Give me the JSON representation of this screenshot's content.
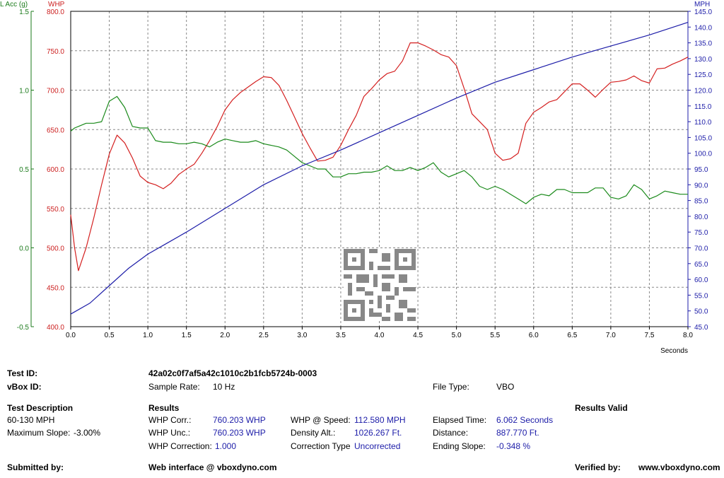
{
  "chart_data": {
    "type": "line",
    "xlabel": "Seconds",
    "xlim": [
      0,
      8
    ],
    "x_ticks": [
      "0.0",
      "0.5",
      "1.0",
      "1.5",
      "2.0",
      "2.5",
      "3.0",
      "3.5",
      "4.0",
      "4.5",
      "5.0",
      "5.5",
      "6.0",
      "6.5",
      "7.0",
      "7.5",
      "8.0"
    ],
    "grid": true,
    "axes": {
      "lacc": {
        "label": "L Acc (g)",
        "range": [
          -0.5,
          1.5
        ],
        "ticks": [
          "1.5",
          "1.0",
          "0.5",
          "0.0",
          "-0.5"
        ],
        "color": "#1a7a1a",
        "side": "left-outer"
      },
      "whp": {
        "label": "WHP",
        "range": [
          400,
          800
        ],
        "ticks": [
          "800.0",
          "750.0",
          "700.0",
          "650.0",
          "600.0",
          "550.0",
          "500.0",
          "450.0",
          "400.0"
        ],
        "color": "#cc1f1f",
        "side": "left-inner"
      },
      "mph": {
        "label": "MPH",
        "range": [
          45,
          145
        ],
        "ticks": [
          "145.0",
          "140.0",
          "135.0",
          "130.0",
          "125.0",
          "120.0",
          "115.0",
          "110.0",
          "105.0",
          "100.0",
          "95.0",
          "90.0",
          "85.0",
          "80.0",
          "75.0",
          "70.0",
          "65.0",
          "60.0",
          "55.0",
          "50.0",
          "45.0"
        ],
        "color": "#1c1ca8",
        "side": "right"
      }
    },
    "series": [
      {
        "axis": "whp",
        "color": "#d42020",
        "x": [
          0,
          0.05,
          0.1,
          0.2,
          0.3,
          0.4,
          0.5,
          0.6,
          0.7,
          0.8,
          0.9,
          1.0,
          1.1,
          1.2,
          1.3,
          1.4,
          1.5,
          1.6,
          1.7,
          1.8,
          1.9,
          2.0,
          2.1,
          2.2,
          2.3,
          2.4,
          2.5,
          2.6,
          2.7,
          2.8,
          2.9,
          3.0,
          3.1,
          3.2,
          3.3,
          3.4,
          3.5,
          3.6,
          3.7,
          3.8,
          3.9,
          4.0,
          4.1,
          4.2,
          4.3,
          4.4,
          4.5,
          4.6,
          4.7,
          4.8,
          4.9,
          5.0,
          5.1,
          5.2,
          5.3,
          5.4,
          5.5,
          5.6,
          5.7,
          5.8,
          5.9,
          6.0,
          6.1,
          6.2,
          6.3,
          6.4,
          6.5,
          6.6,
          6.7,
          6.8,
          6.9,
          7.0,
          7.1,
          7.2,
          7.3,
          7.4,
          7.5,
          7.6,
          7.7,
          7.8,
          7.9,
          8.0
        ],
        "y": [
          542,
          500,
          471,
          500,
          538,
          580,
          619,
          643,
          633,
          614,
          591,
          583,
          580,
          575,
          582,
          593,
          600,
          606,
          620,
          636,
          654,
          675,
          688,
          697,
          704,
          711,
          717,
          716,
          706,
          687,
          666,
          645,
          627,
          610,
          611,
          615,
          630,
          650,
          668,
          692,
          702,
          713,
          721,
          724,
          737,
          760,
          760,
          756,
          751,
          745,
          742,
          731,
          702,
          670,
          660,
          650,
          620,
          611,
          613,
          620,
          658,
          672,
          678,
          685,
          688,
          698,
          708,
          708,
          700,
          691,
          701,
          710,
          711,
          713,
          718,
          712,
          709,
          727,
          728,
          733,
          737,
          742
        ]
      },
      {
        "axis": "lacc",
        "color": "#1a8a1a",
        "x": [
          0,
          0.05,
          0.1,
          0.2,
          0.3,
          0.4,
          0.5,
          0.6,
          0.7,
          0.8,
          0.9,
          1.0,
          1.1,
          1.2,
          1.3,
          1.4,
          1.5,
          1.6,
          1.7,
          1.8,
          1.9,
          2.0,
          2.1,
          2.2,
          2.3,
          2.4,
          2.5,
          2.6,
          2.7,
          2.8,
          2.9,
          3.0,
          3.1,
          3.2,
          3.3,
          3.4,
          3.5,
          3.6,
          3.7,
          3.8,
          3.9,
          4.0,
          4.1,
          4.2,
          4.3,
          4.4,
          4.5,
          4.6,
          4.7,
          4.8,
          4.9,
          5.0,
          5.1,
          5.2,
          5.3,
          5.4,
          5.5,
          5.6,
          5.7,
          5.8,
          5.9,
          6.0,
          6.1,
          6.2,
          6.3,
          6.4,
          6.5,
          6.6,
          6.7,
          6.8,
          6.9,
          7.0,
          7.1,
          7.2,
          7.3,
          7.4,
          7.5,
          7.6,
          7.7,
          7.8,
          7.9,
          8.0
        ],
        "y": [
          0.74,
          0.76,
          0.77,
          0.79,
          0.79,
          0.8,
          0.93,
          0.96,
          0.89,
          0.77,
          0.76,
          0.76,
          0.68,
          0.67,
          0.67,
          0.66,
          0.66,
          0.67,
          0.66,
          0.64,
          0.67,
          0.69,
          0.68,
          0.67,
          0.67,
          0.68,
          0.66,
          0.65,
          0.64,
          0.62,
          0.58,
          0.54,
          0.52,
          0.5,
          0.5,
          0.45,
          0.45,
          0.47,
          0.47,
          0.48,
          0.48,
          0.49,
          0.52,
          0.49,
          0.49,
          0.51,
          0.49,
          0.51,
          0.54,
          0.48,
          0.45,
          0.47,
          0.49,
          0.45,
          0.39,
          0.37,
          0.39,
          0.37,
          0.34,
          0.31,
          0.28,
          0.32,
          0.34,
          0.33,
          0.37,
          0.37,
          0.35,
          0.35,
          0.35,
          0.38,
          0.38,
          0.32,
          0.31,
          0.33,
          0.4,
          0.37,
          0.31,
          0.33,
          0.36,
          0.35,
          0.34,
          0.34
        ]
      },
      {
        "axis": "mph",
        "color": "#1c1ca8",
        "x": [
          0,
          0.25,
          0.5,
          0.75,
          1.0,
          1.25,
          1.5,
          2.0,
          2.5,
          3.0,
          3.5,
          4.0,
          4.5,
          5.0,
          5.5,
          6.0,
          6.5,
          7.0,
          7.5,
          8.0
        ],
        "y": [
          49,
          52.5,
          58,
          63.5,
          68,
          71.5,
          75,
          82.5,
          90,
          96,
          101,
          106.5,
          112,
          117.5,
          122.5,
          126.5,
          130.5,
          134,
          137.5,
          141.5
        ]
      }
    ]
  },
  "report": {
    "test_id_label": "Test ID:",
    "test_id_value": "42a02c0f7af5a42c1010c2b1fcb5724b-0003",
    "vbox_id_label": "vBox ID:",
    "sample_rate_label": "Sample Rate:",
    "sample_rate_value": "10 Hz",
    "file_type_label": "File Type:",
    "file_type_value": "VBO",
    "test_description_label": "Test Description",
    "test_range": "60-130 MPH",
    "max_slope_label": "Maximum Slope:",
    "max_slope_value": "-3.00%",
    "results_label": "Results",
    "results_valid": "Results Valid",
    "whp_corr_label": "WHP Corr.:",
    "whp_corr_value": "760.203 WHP",
    "whp_unc_label": "WHP Unc.:",
    "whp_unc_value": "760.203 WHP",
    "whp_correction_label": "WHP Correction:",
    "whp_correction_value": "1.000",
    "whp_at_speed_label": "WHP @ Speed:",
    "whp_at_speed_value": "112.580 MPH",
    "density_alt_label": "Density Alt.:",
    "density_alt_value": "1026.267 Ft.",
    "correction_type_label": "Correction Type",
    "correction_type_value": "Uncorrected",
    "elapsed_time_label": "Elapsed Time:",
    "elapsed_time_value": "6.062 Seconds",
    "distance_label": "Distance:",
    "distance_value": "887.770 Ft.",
    "ending_slope_label": "Ending Slope:",
    "ending_slope_value": "-0.348 %",
    "submitted_by_label": "Submitted by:",
    "web_interface": "Web interface @ vboxdyno.com",
    "verified_by_label": "Verified by:",
    "website": "www.vboxdyno.com"
  }
}
